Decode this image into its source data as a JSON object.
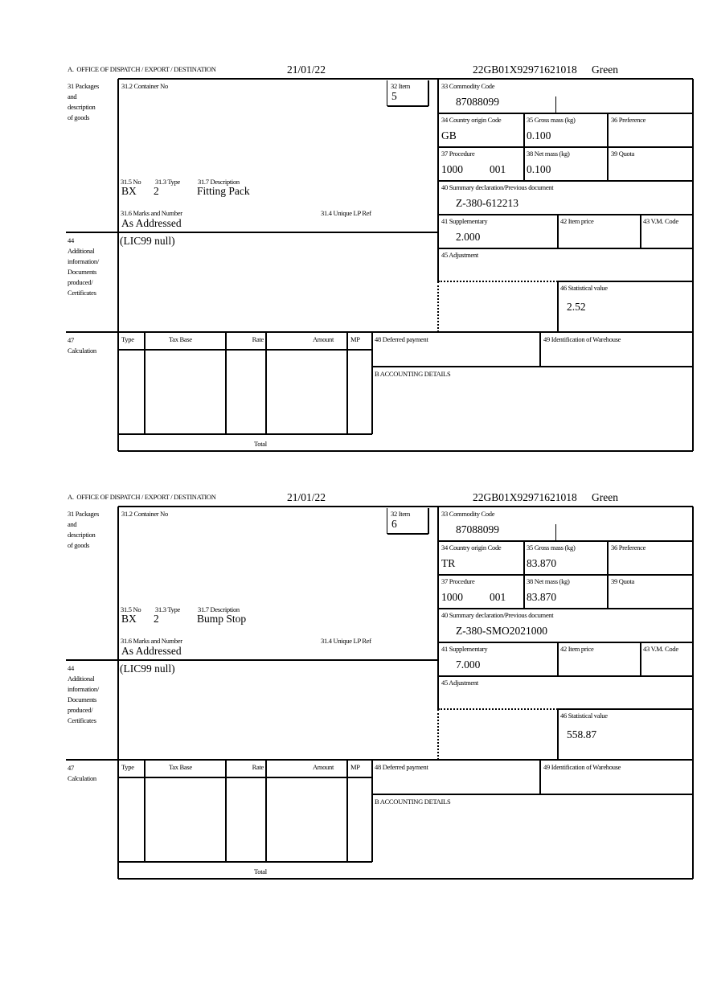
{
  "labels": {
    "office": "A.  OFFICE OF DISPATCH / EXPORT / DESTINATION",
    "packages": [
      "31 Packages",
      "and",
      "description",
      "of goods"
    ],
    "container_no": "31.2 Container No",
    "item": "32 Item",
    "commodity_code": "33 Commodity Code",
    "country_origin": "34 Country origin Code",
    "gross_mass": "35 Gross mass (kg)",
    "preference": "36 Preference",
    "procedure": "37 Procedure",
    "net_mass": "38 Net mass (kg)",
    "quota": "39 Quota",
    "summary_declaration": "40 Summary declaration/Previous document",
    "supplementary": "41 Supplementary",
    "item_price": "42 Item price",
    "vm_code": "43 V.M. Code",
    "adjustment": "45 Adjustment",
    "statistical_value": "46 Statistical value",
    "pkg_no": "31.5 No",
    "pkg_type": "31.3 Type",
    "pkg_description": "31.7 Description",
    "marks_numbers": "31.6 Marks and Number",
    "unique_lp_ref": "31.4 Unique LP Ref",
    "additional_info": [
      "44",
      "Additional",
      "information/",
      "Documents",
      "produced/",
      "Certificates"
    ],
    "calculation": [
      "47",
      "Calculation"
    ],
    "calc_columns": [
      "Type",
      "Tax Base",
      "Rate",
      "Amount",
      "MP"
    ],
    "total": "Total",
    "deferred_payment": "48 Deferred payment",
    "warehouse_id": "49 Identification of Warehouse",
    "accounting_details": "B ACCOUNTING DETAILS"
  },
  "forms": [
    {
      "date": "21/01/22",
      "mrn": "22GB01X92971621018",
      "route": "Green",
      "item": "5",
      "commodity_code": "87088099",
      "country_origin": "GB",
      "gross_mass": "0.100",
      "procedure": "1000",
      "procedure_additional": "001",
      "net_mass": "0.100",
      "summary_declaration": "Z-380-612213",
      "supplementary": "2.000",
      "statistical_value": "2.52",
      "pkg_kind": "BX",
      "pkg_count": "2",
      "description": "Fitting Pack",
      "marks": "As Addressed",
      "additional_info": "(LIC99 null)"
    },
    {
      "date": "21/01/22",
      "mrn": "22GB01X92971621018",
      "route": "Green",
      "item": "6",
      "commodity_code": "87088099",
      "country_origin": "TR",
      "gross_mass": "83.870",
      "procedure": "1000",
      "procedure_additional": "001",
      "net_mass": "83.870",
      "summary_declaration": "Z-380-SMO2021000",
      "supplementary": "7.000",
      "statistical_value": "558.87",
      "pkg_kind": "BX",
      "pkg_count": "2",
      "description": "Bump Stop",
      "marks": "As Addressed",
      "additional_info": "(LIC99 null)"
    }
  ]
}
